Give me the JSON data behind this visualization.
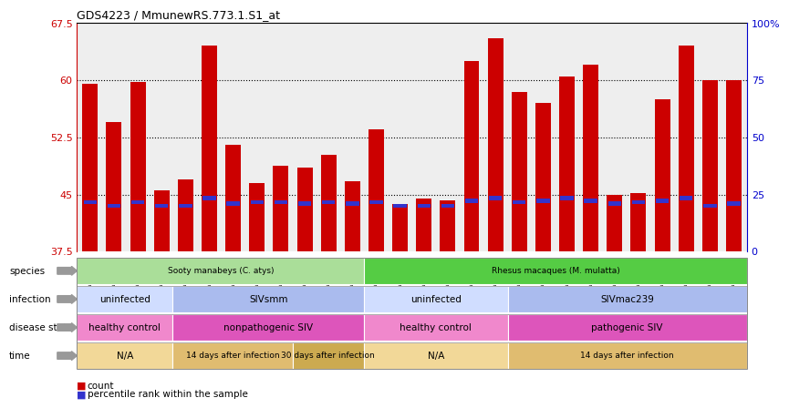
{
  "title": "GDS4223 / MmunewRS.773.1.S1_at",
  "samples": [
    "GSM440057",
    "GSM440058",
    "GSM440059",
    "GSM440060",
    "GSM440061",
    "GSM440062",
    "GSM440063",
    "GSM440064",
    "GSM440065",
    "GSM440066",
    "GSM440067",
    "GSM440068",
    "GSM440069",
    "GSM440070",
    "GSM440071",
    "GSM440072",
    "GSM440073",
    "GSM440074",
    "GSM440075",
    "GSM440076",
    "GSM440077",
    "GSM440078",
    "GSM440079",
    "GSM440080",
    "GSM440081",
    "GSM440082",
    "GSM440083",
    "GSM440084"
  ],
  "counts": [
    59.5,
    54.5,
    59.8,
    45.5,
    47.0,
    64.5,
    51.5,
    46.5,
    48.8,
    48.5,
    50.2,
    46.8,
    53.5,
    43.8,
    44.5,
    44.2,
    62.5,
    65.5,
    58.5,
    57.0,
    60.5,
    62.0,
    45.0,
    45.2,
    57.5,
    64.5,
    60.0,
    60.0
  ],
  "percentile_ranks": [
    44.0,
    43.5,
    44.0,
    43.5,
    43.5,
    44.5,
    43.8,
    44.0,
    44.0,
    43.8,
    44.0,
    43.8,
    44.0,
    43.5,
    43.5,
    43.5,
    44.2,
    44.5,
    44.0,
    44.2,
    44.5,
    44.2,
    43.8,
    44.0,
    44.2,
    44.5,
    43.5,
    43.8
  ],
  "ylim_left": [
    37.5,
    67.5
  ],
  "yticks_left": [
    37.5,
    45.0,
    52.5,
    60.0,
    67.5
  ],
  "ytick_left_labels": [
    "37.5",
    "45",
    "52.5",
    "60",
    "67.5"
  ],
  "ylim_right": [
    0,
    100
  ],
  "yticks_right": [
    0,
    25,
    50,
    75,
    100
  ],
  "ytick_right_labels": [
    "0",
    "25",
    "50",
    "75",
    "100%"
  ],
  "bar_color": "#cc0000",
  "percentile_color": "#3333cc",
  "axis_left_color": "#cc0000",
  "axis_right_color": "#0000cc",
  "chart_bg": "#eeeeee",
  "species_data": [
    {
      "label": "Sooty manabeys (C. atys)",
      "start": 0,
      "end": 12,
      "color": "#aade99"
    },
    {
      "label": "Rhesus macaques (M. mulatta)",
      "start": 12,
      "end": 28,
      "color": "#55cc44"
    }
  ],
  "infection_data": [
    {
      "label": "uninfected",
      "start": 0,
      "end": 4,
      "color": "#d0ddff"
    },
    {
      "label": "SIVsmm",
      "start": 4,
      "end": 12,
      "color": "#aabbee"
    },
    {
      "label": "uninfected",
      "start": 12,
      "end": 18,
      "color": "#d0ddff"
    },
    {
      "label": "SIVmac239",
      "start": 18,
      "end": 28,
      "color": "#aabbee"
    }
  ],
  "disease_data": [
    {
      "label": "healthy control",
      "start": 0,
      "end": 4,
      "color": "#f088cc"
    },
    {
      "label": "nonpathogenic SIV",
      "start": 4,
      "end": 12,
      "color": "#dd55bb"
    },
    {
      "label": "healthy control",
      "start": 12,
      "end": 18,
      "color": "#f088cc"
    },
    {
      "label": "pathogenic SIV",
      "start": 18,
      "end": 28,
      "color": "#dd55bb"
    }
  ],
  "time_data": [
    {
      "label": "N/A",
      "start": 0,
      "end": 4,
      "color": "#f2d898"
    },
    {
      "label": "14 days after infection",
      "start": 4,
      "end": 9,
      "color": "#e0bc70"
    },
    {
      "label": "30 days after infection",
      "start": 9,
      "end": 12,
      "color": "#ccaa50"
    },
    {
      "label": "N/A",
      "start": 12,
      "end": 18,
      "color": "#f2d898"
    },
    {
      "label": "14 days after infection",
      "start": 18,
      "end": 28,
      "color": "#e0bc70"
    }
  ],
  "row_labels": [
    "species",
    "infection",
    "disease state",
    "time"
  ],
  "legend_labels": [
    "count",
    "percentile rank within the sample"
  ],
  "legend_colors": [
    "#cc0000",
    "#3333cc"
  ],
  "bg_color": "#ffffff"
}
